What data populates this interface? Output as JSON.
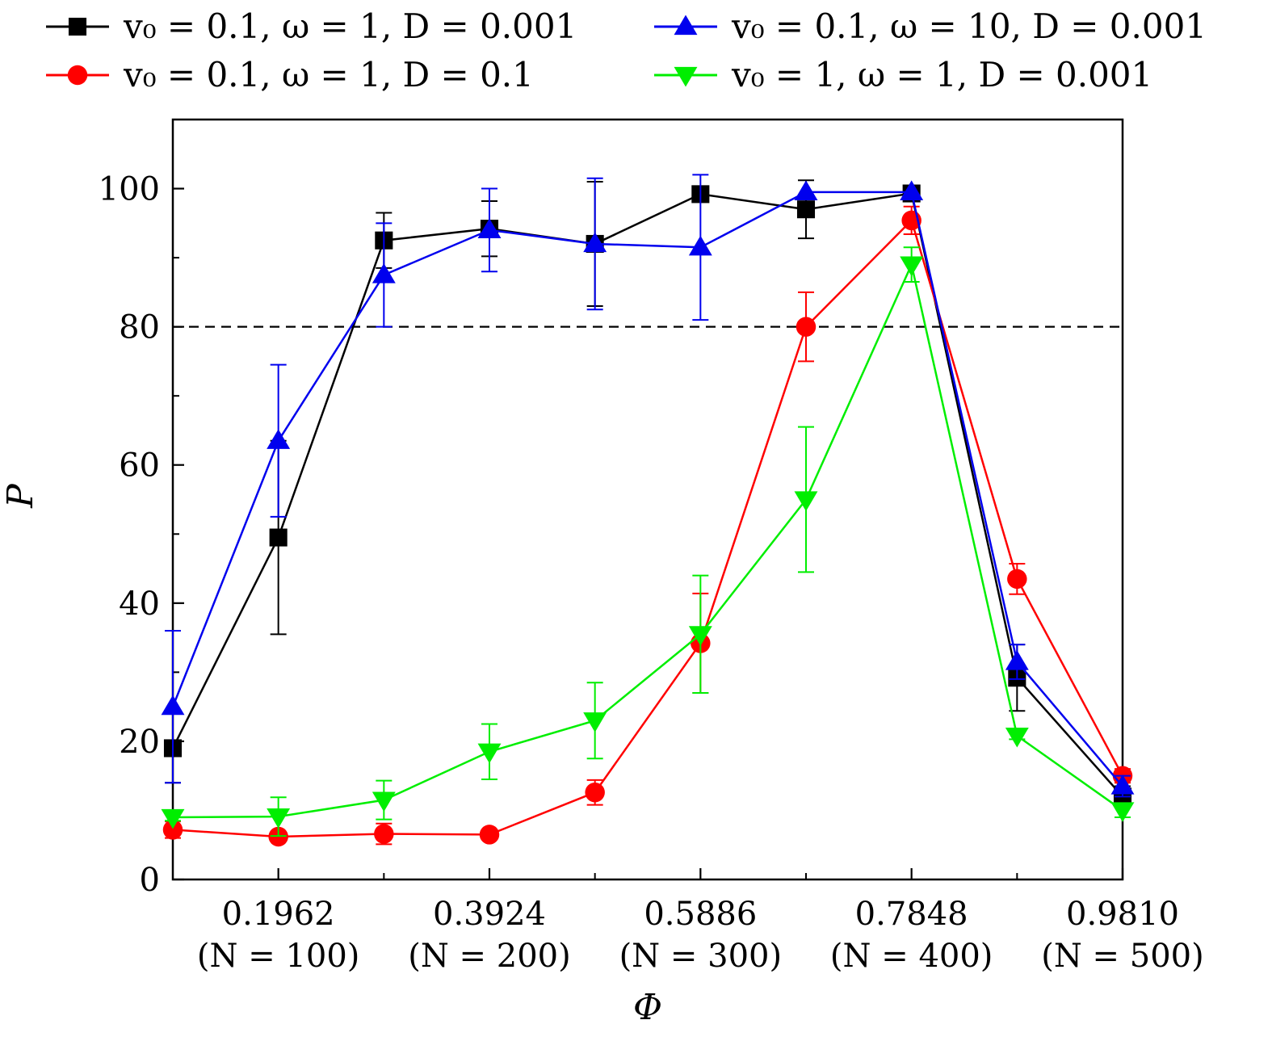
{
  "chart_data": {
    "type": "line",
    "xlabel": "Φ",
    "ylabel": "P",
    "xlim": [
      0.0981,
      0.981
    ],
    "ylim": [
      0,
      110
    ],
    "grid": false,
    "legend_position": "top",
    "x": [
      0.0981,
      0.1962,
      0.2943,
      0.3924,
      0.4905,
      0.5886,
      0.6867,
      0.7848,
      0.8829,
      0.981
    ],
    "x_ticks": [
      {
        "value": 0.1962,
        "label": "0.1962",
        "sublabel": "(N = 100)"
      },
      {
        "value": 0.3924,
        "label": "0.3924",
        "sublabel": "(N = 200)"
      },
      {
        "value": 0.5886,
        "label": "0.5886",
        "sublabel": "(N = 300)"
      },
      {
        "value": 0.7848,
        "label": "0.7848",
        "sublabel": "(N = 400)"
      },
      {
        "value": 0.981,
        "label": "0.9810",
        "sublabel": "(N = 500)"
      }
    ],
    "x_minor_ticks": [
      0.2943,
      0.4905,
      0.6867,
      0.8829
    ],
    "y_ticks": [
      {
        "value": 0,
        "label": "0"
      },
      {
        "value": 20,
        "label": "20"
      },
      {
        "value": 40,
        "label": "40"
      },
      {
        "value": 60,
        "label": "60"
      },
      {
        "value": 80,
        "label": "80"
      },
      {
        "value": 100,
        "label": "100"
      }
    ],
    "y_minor_ticks": [
      10,
      30,
      50,
      70,
      90
    ],
    "reference_line": {
      "y": 80,
      "style": "dashed",
      "color": "#000000"
    },
    "series": [
      {
        "name": "v0 = 0.1, ω = 1, D = 0.001",
        "legend_label": "v₀ = 0.1,  ω = 1,  D = 0.001",
        "color": "#000000",
        "marker": "square",
        "y": [
          19,
          49.5,
          92.5,
          94.2,
          92,
          99.2,
          97,
          99.3,
          29.2,
          12
        ],
        "err": [
          5,
          14,
          4,
          4,
          9,
          0,
          4.2,
          0,
          4.8,
          1.5
        ]
      },
      {
        "name": "v0 = 0.1, ω = 1, D = 0.1",
        "legend_label": "v₀ = 0.1,  ω = 1,  D = 0.1",
        "color": "#ff0000",
        "marker": "circle",
        "y": [
          7.2,
          6.2,
          6.6,
          6.5,
          12.6,
          34.2,
          80,
          95.4,
          43.5,
          15
        ],
        "err": [
          1.2,
          0.6,
          1.5,
          0.5,
          1.8,
          7.2,
          5,
          2,
          2.2,
          1
        ]
      },
      {
        "name": "v0 = 0.1, ω = 10, D = 0.001",
        "legend_label": "v₀ = 0.1,  ω = 10,  D = 0.001",
        "color": "#0000ee",
        "marker": "triangle-up",
        "y": [
          25,
          63.5,
          87.5,
          94,
          92,
          91.5,
          99.5,
          99.5,
          31.5,
          13.5
        ],
        "err": [
          11,
          11,
          7.5,
          6,
          9.5,
          10.5,
          0,
          0,
          2.5,
          1.5
        ]
      },
      {
        "name": "v0 = 1, ω = 1, D = 0.001",
        "legend_label": "v₀ = 1,  ω = 1,  D = 0.001",
        "color": "#00ee00",
        "marker": "triangle-down",
        "y": [
          9,
          9.1,
          11.5,
          18.5,
          23,
          35.5,
          55,
          89,
          20.8,
          10
        ],
        "err": [
          0.5,
          2.8,
          2.8,
          4,
          5.5,
          8.5,
          10.5,
          2.5,
          0.5,
          1
        ]
      }
    ]
  }
}
